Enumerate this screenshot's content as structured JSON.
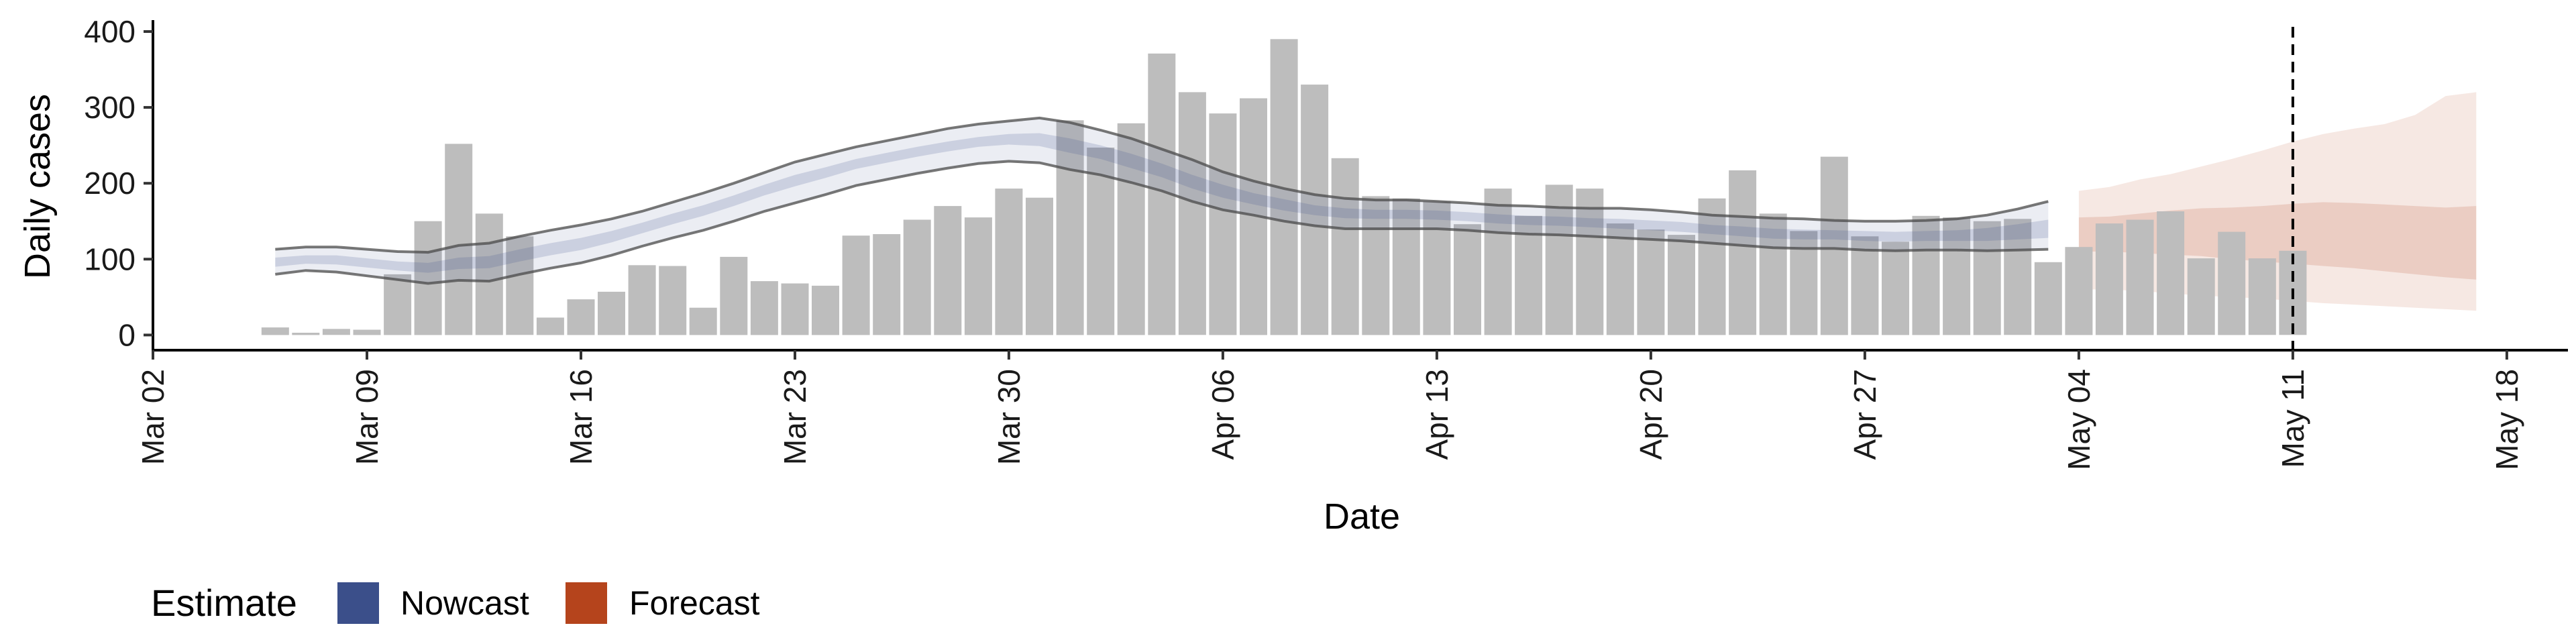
{
  "chart_data": {
    "type": "bar",
    "xlabel": "Date",
    "ylabel": "Daily cases",
    "ylim": [
      -20,
      415
    ],
    "xlim": [
      "2020-03-02",
      "2020-05-20"
    ],
    "y_ticks": [
      0,
      100,
      200,
      300,
      400
    ],
    "x_ticks": [
      {
        "date": "2020-03-02",
        "label": "Mar 02"
      },
      {
        "date": "2020-03-09",
        "label": "Mar 09"
      },
      {
        "date": "2020-03-16",
        "label": "Mar 16"
      },
      {
        "date": "2020-03-23",
        "label": "Mar 23"
      },
      {
        "date": "2020-03-30",
        "label": "Mar 30"
      },
      {
        "date": "2020-04-06",
        "label": "Apr 06"
      },
      {
        "date": "2020-04-13",
        "label": "Apr 13"
      },
      {
        "date": "2020-04-20",
        "label": "Apr 20"
      },
      {
        "date": "2020-04-27",
        "label": "Apr 27"
      },
      {
        "date": "2020-05-04",
        "label": "May 04"
      },
      {
        "date": "2020-05-11",
        "label": "May 11"
      },
      {
        "date": "2020-05-18",
        "label": "May 18"
      }
    ],
    "grid": false,
    "legend_position": "bottom-left",
    "cases": {
      "dates": [
        "2020-03-06",
        "2020-03-07",
        "2020-03-08",
        "2020-03-09",
        "2020-03-10",
        "2020-03-11",
        "2020-03-12",
        "2020-03-13",
        "2020-03-14",
        "2020-03-15",
        "2020-03-16",
        "2020-03-17",
        "2020-03-18",
        "2020-03-19",
        "2020-03-20",
        "2020-03-21",
        "2020-03-22",
        "2020-03-23",
        "2020-03-24",
        "2020-03-25",
        "2020-03-26",
        "2020-03-27",
        "2020-03-28",
        "2020-03-29",
        "2020-03-30",
        "2020-03-31",
        "2020-04-01",
        "2020-04-02",
        "2020-04-03",
        "2020-04-04",
        "2020-04-05",
        "2020-04-06",
        "2020-04-07",
        "2020-04-08",
        "2020-04-09",
        "2020-04-10",
        "2020-04-11",
        "2020-04-12",
        "2020-04-13",
        "2020-04-14",
        "2020-04-15",
        "2020-04-16",
        "2020-04-17",
        "2020-04-18",
        "2020-04-19",
        "2020-04-20",
        "2020-04-21",
        "2020-04-22",
        "2020-04-23",
        "2020-04-24",
        "2020-04-25",
        "2020-04-26",
        "2020-04-27",
        "2020-04-28",
        "2020-04-29",
        "2020-04-30",
        "2020-05-01",
        "2020-05-02",
        "2020-05-03",
        "2020-05-04",
        "2020-05-05",
        "2020-05-06",
        "2020-05-07",
        "2020-05-08",
        "2020-05-09",
        "2020-05-10",
        "2020-05-11"
      ],
      "values": [
        10,
        3,
        8,
        7,
        80,
        150,
        252,
        160,
        130,
        23,
        47,
        57,
        92,
        91,
        36,
        103,
        71,
        68,
        65,
        131,
        133,
        152,
        170,
        155,
        193,
        181,
        283,
        247,
        279,
        371,
        320,
        292,
        312,
        390,
        330,
        233,
        183,
        180,
        176,
        146,
        193,
        157,
        198,
        193,
        147,
        139,
        132,
        180,
        217,
        160,
        137,
        235,
        130,
        123,
        157,
        155,
        150,
        153,
        96,
        116,
        147,
        152,
        163,
        101,
        136,
        101,
        111
      ],
      "color": "#bdbdbd"
    },
    "series": [
      {
        "name": "Nowcast",
        "color": "#3b4f8a",
        "dates": [
          "2020-03-06",
          "2020-03-07",
          "2020-03-08",
          "2020-03-09",
          "2020-03-10",
          "2020-03-11",
          "2020-03-12",
          "2020-03-13",
          "2020-03-14",
          "2020-03-15",
          "2020-03-16",
          "2020-03-17",
          "2020-03-18",
          "2020-03-19",
          "2020-03-20",
          "2020-03-21",
          "2020-03-22",
          "2020-03-23",
          "2020-03-24",
          "2020-03-25",
          "2020-03-26",
          "2020-03-27",
          "2020-03-28",
          "2020-03-29",
          "2020-03-30",
          "2020-03-31",
          "2020-04-01",
          "2020-04-02",
          "2020-04-03",
          "2020-04-04",
          "2020-04-05",
          "2020-04-06",
          "2020-04-07",
          "2020-04-08",
          "2020-04-09",
          "2020-04-10",
          "2020-04-11",
          "2020-04-12",
          "2020-04-13",
          "2020-04-14",
          "2020-04-15",
          "2020-04-16",
          "2020-04-17",
          "2020-04-18",
          "2020-04-19",
          "2020-04-20",
          "2020-04-21",
          "2020-04-22",
          "2020-04-23",
          "2020-04-24",
          "2020-04-25",
          "2020-04-26",
          "2020-04-27",
          "2020-04-28",
          "2020-04-29",
          "2020-04-30",
          "2020-05-01",
          "2020-05-02",
          "2020-05-03"
        ],
        "lower90": [
          80,
          85,
          83,
          78,
          73,
          68,
          72,
          71,
          80,
          88,
          95,
          105,
          117,
          128,
          138,
          150,
          163,
          174,
          185,
          197,
          205,
          213,
          220,
          226,
          229,
          227,
          218,
          211,
          201,
          190,
          176,
          165,
          158,
          150,
          144,
          140,
          140,
          140,
          140,
          138,
          135,
          133,
          132,
          130,
          128,
          126,
          124,
          121,
          118,
          115,
          114,
          114,
          112,
          111,
          112,
          112,
          111,
          112,
          113
        ],
        "upper90": [
          113,
          116,
          116,
          113,
          110,
          109,
          118,
          121,
          130,
          138,
          145,
          153,
          163,
          175,
          187,
          200,
          214,
          228,
          238,
          248,
          256,
          264,
          272,
          278,
          282,
          286,
          280,
          270,
          259,
          245,
          231,
          215,
          203,
          193,
          185,
          180,
          178,
          178,
          176,
          174,
          171,
          170,
          168,
          167,
          167,
          165,
          162,
          158,
          156,
          154,
          153,
          151,
          150,
          150,
          151,
          153,
          158,
          166,
          176
        ],
        "lower50": [
          90,
          94,
          93,
          89,
          85,
          82,
          87,
          88,
          97,
          105,
          112,
          122,
          134,
          146,
          157,
          170,
          184,
          196,
          207,
          219,
          227,
          235,
          242,
          248,
          251,
          249,
          240,
          232,
          220,
          208,
          193,
          181,
          172,
          164,
          158,
          154,
          153,
          153,
          152,
          150,
          147,
          145,
          144,
          142,
          140,
          138,
          136,
          133,
          130,
          127,
          126,
          126,
          124,
          123,
          124,
          124,
          124,
          126,
          128
        ],
        "upper50": [
          102,
          105,
          105,
          101,
          97,
          95,
          102,
          104,
          113,
          121,
          128,
          137,
          148,
          160,
          171,
          184,
          198,
          211,
          221,
          232,
          240,
          248,
          255,
          261,
          265,
          266,
          259,
          250,
          239,
          226,
          211,
          198,
          187,
          179,
          171,
          167,
          165,
          165,
          164,
          162,
          159,
          157,
          156,
          154,
          153,
          151,
          149,
          145,
          143,
          140,
          139,
          138,
          137,
          136,
          137,
          138,
          141,
          146,
          152
        ]
      },
      {
        "name": "Forecast",
        "color": "#b5441c",
        "dates": [
          "2020-05-04",
          "2020-05-05",
          "2020-05-06",
          "2020-05-07",
          "2020-05-08",
          "2020-05-09",
          "2020-05-10",
          "2020-05-11",
          "2020-05-12",
          "2020-05-13",
          "2020-05-14",
          "2020-05-15",
          "2020-05-16",
          "2020-05-17"
        ],
        "lower90": [
          60,
          60,
          58,
          55,
          52,
          50,
          48,
          45,
          42,
          40,
          38,
          36,
          34,
          32
        ],
        "upper90": [
          190,
          195,
          205,
          212,
          222,
          232,
          243,
          255,
          265,
          272,
          278,
          290,
          315,
          320
        ],
        "lower50": [
          110,
          110,
          108,
          106,
          104,
          100,
          97,
          94,
          91,
          88,
          84,
          80,
          76,
          73
        ],
        "upper50": [
          155,
          156,
          160,
          164,
          167,
          168,
          170,
          173,
          175,
          174,
          172,
          170,
          168,
          170
        ]
      }
    ],
    "annotations": [
      {
        "type": "vline",
        "date": "2020-05-11",
        "style": "dashed"
      }
    ],
    "legend": {
      "title": "Estimate",
      "items": [
        {
          "label": "Nowcast",
          "color": "#3b4f8a"
        },
        {
          "label": "Forecast",
          "color": "#b5441c"
        }
      ]
    }
  }
}
